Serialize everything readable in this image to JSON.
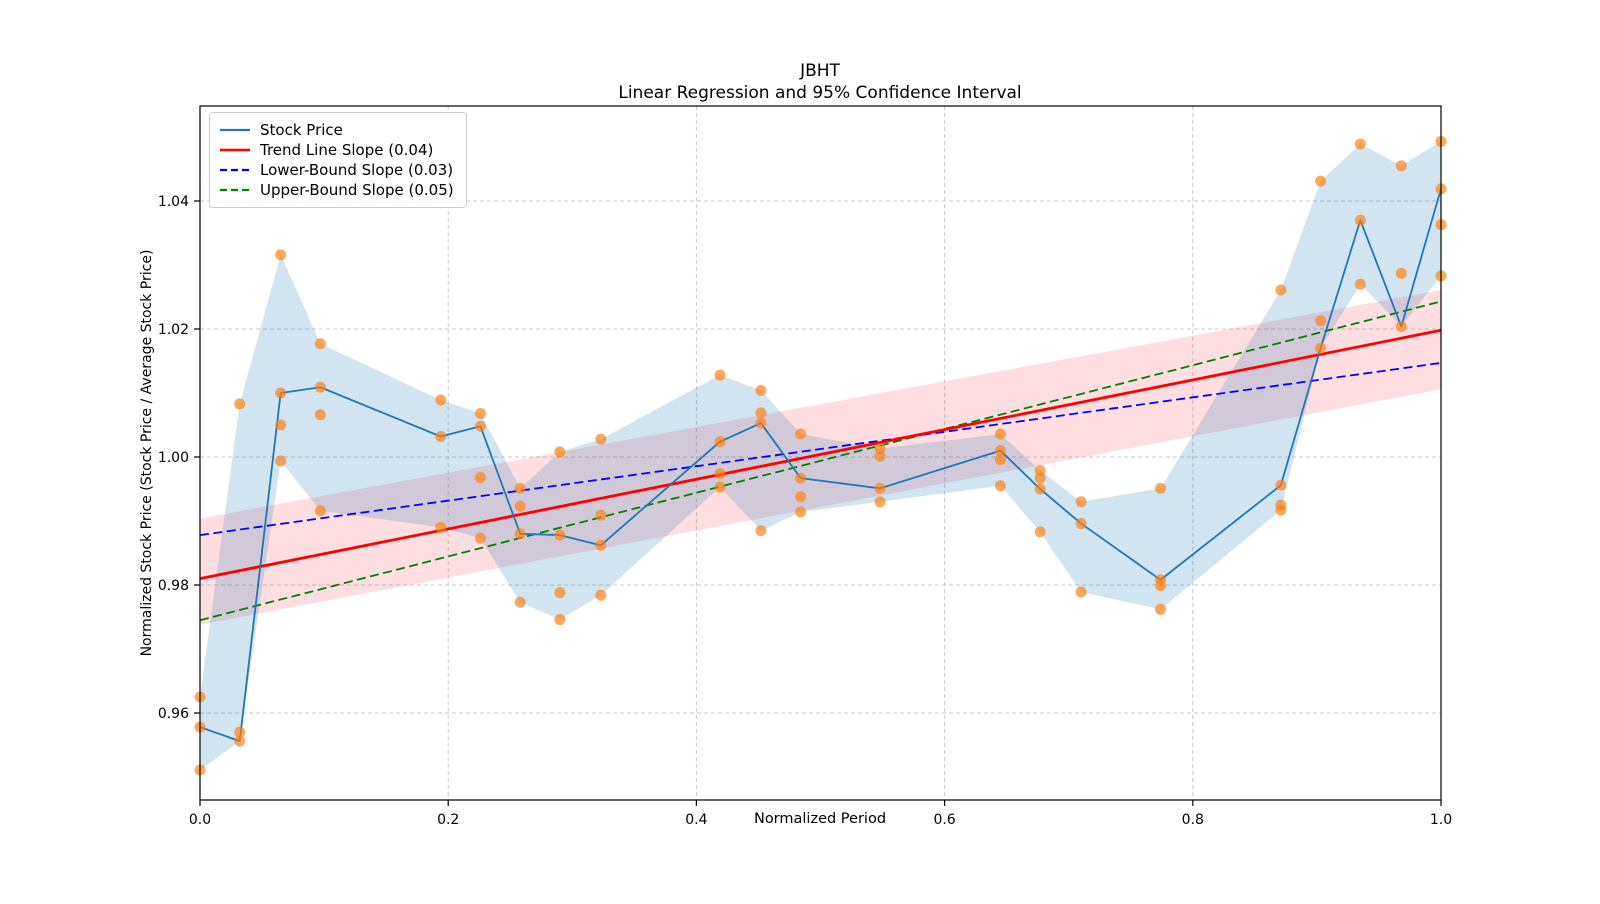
{
  "chart_data": {
    "type": "line",
    "title": "JBHT",
    "subtitle": "Linear Regression and 95% Confidence Interval",
    "xlabel": "Normalized Period",
    "ylabel": "Normalized Stock Price (Stock Price / Average Stock Price)",
    "xlim": [
      0.0,
      1.0
    ],
    "ylim": [
      0.9464,
      1.0548
    ],
    "grid": true,
    "legend_position": "upper-left",
    "x_ticks": {
      "values": [
        0.0,
        0.2,
        0.4,
        0.6,
        0.8,
        1.0
      ],
      "labels": [
        "0.0",
        "0.2",
        "0.4",
        "0.6",
        "0.8",
        "1.0"
      ]
    },
    "y_ticks": {
      "values": [
        0.96,
        0.98,
        1.0,
        1.02,
        1.04
      ],
      "labels": [
        "0.96",
        "0.98",
        "1.00",
        "1.02",
        "1.04"
      ]
    },
    "colors": {
      "stock_line": "#1f77b4",
      "scatter": "#ff7f0e",
      "price_band": "rgba(31,119,180,0.20)",
      "trend": "#ff0000",
      "lower_bound": "#0000ff",
      "upper_bound": "#008000",
      "ci_band": "rgba(255,20,40,0.14)",
      "grid": "#c9c9c9",
      "spine": "#000000"
    },
    "series": {
      "stock_price_line": {
        "label": "Stock Price",
        "x": [
          0.0,
          0.032,
          0.065,
          0.097,
          0.194,
          0.226,
          0.258,
          0.29,
          0.323,
          0.419,
          0.452,
          0.484,
          0.548,
          0.645,
          0.677,
          0.71,
          0.774,
          0.871,
          0.903,
          0.935,
          0.968,
          1.0
        ],
        "y": [
          0.9578,
          0.9556,
          1.01,
          1.0109,
          1.0032,
          1.0048,
          0.988,
          0.9878,
          0.9862,
          1.0024,
          1.0053,
          0.9967,
          0.9951,
          1.001,
          0.995,
          0.9896,
          0.9808,
          0.9956,
          1.017,
          1.037,
          1.0204,
          1.0419
        ]
      },
      "price_band": {
        "x": [
          0.0,
          0.032,
          0.065,
          0.097,
          0.194,
          0.226,
          0.258,
          0.29,
          0.323,
          0.419,
          0.452,
          0.484,
          0.548,
          0.645,
          0.677,
          0.71,
          0.774,
          0.871,
          0.903,
          0.935,
          0.968,
          1.0
        ],
        "upper": [
          0.9625,
          1.0083,
          1.0316,
          1.0177,
          1.0089,
          1.0068,
          0.9951,
          1.0008,
          1.0028,
          1.0128,
          1.0104,
          1.0036,
          1.0013,
          1.0036,
          0.9979,
          0.993,
          0.9951,
          1.0261,
          1.0431,
          1.0489,
          1.0455,
          1.0493
        ],
        "lower": [
          0.9511,
          0.9556,
          0.9994,
          0.9916,
          0.989,
          0.9873,
          0.9773,
          0.9746,
          0.9784,
          0.9953,
          0.9885,
          0.9914,
          0.993,
          0.9955,
          0.9883,
          0.9789,
          0.9762,
          0.9917,
          1.017,
          1.027,
          1.0204,
          1.0283
        ]
      },
      "scatter_points": {
        "points": [
          [
            0.0,
            0.9625
          ],
          [
            0.0,
            0.9578
          ],
          [
            0.0,
            0.9511
          ],
          [
            0.032,
            1.0083
          ],
          [
            0.032,
            0.957
          ],
          [
            0.032,
            0.9556
          ],
          [
            0.065,
            1.0316
          ],
          [
            0.065,
            1.01
          ],
          [
            0.065,
            1.005
          ],
          [
            0.065,
            0.9994
          ],
          [
            0.097,
            1.0177
          ],
          [
            0.097,
            1.0109
          ],
          [
            0.097,
            1.0066
          ],
          [
            0.097,
            0.9916
          ],
          [
            0.194,
            1.0089
          ],
          [
            0.194,
            1.0032
          ],
          [
            0.194,
            0.989
          ],
          [
            0.226,
            1.0068
          ],
          [
            0.226,
            1.0048
          ],
          [
            0.226,
            0.9968
          ],
          [
            0.226,
            0.9873
          ],
          [
            0.258,
            0.9951
          ],
          [
            0.258,
            0.9923
          ],
          [
            0.258,
            0.988
          ],
          [
            0.258,
            0.9773
          ],
          [
            0.29,
            1.0008
          ],
          [
            0.29,
            0.9878
          ],
          [
            0.29,
            0.9788
          ],
          [
            0.29,
            0.9746
          ],
          [
            0.323,
            1.0028
          ],
          [
            0.323,
            0.9909
          ],
          [
            0.323,
            0.9862
          ],
          [
            0.323,
            0.9784
          ],
          [
            0.419,
            1.0128
          ],
          [
            0.419,
            1.0024
          ],
          [
            0.419,
            0.9974
          ],
          [
            0.419,
            0.9953
          ],
          [
            0.452,
            1.0104
          ],
          [
            0.452,
            1.0069
          ],
          [
            0.452,
            1.0053
          ],
          [
            0.452,
            0.9885
          ],
          [
            0.484,
            1.0036
          ],
          [
            0.484,
            0.9967
          ],
          [
            0.484,
            0.9938
          ],
          [
            0.484,
            0.9914
          ],
          [
            0.548,
            1.0013
          ],
          [
            0.548,
            1.0001
          ],
          [
            0.548,
            0.9951
          ],
          [
            0.548,
            0.993
          ],
          [
            0.645,
            1.0036
          ],
          [
            0.645,
            1.001
          ],
          [
            0.645,
            0.9996
          ],
          [
            0.645,
            0.9955
          ],
          [
            0.677,
            0.9979
          ],
          [
            0.677,
            0.9967
          ],
          [
            0.677,
            0.995
          ],
          [
            0.677,
            0.9883
          ],
          [
            0.71,
            0.993
          ],
          [
            0.71,
            0.9896
          ],
          [
            0.71,
            0.9789
          ],
          [
            0.774,
            0.9951
          ],
          [
            0.774,
            0.9808
          ],
          [
            0.774,
            0.9799
          ],
          [
            0.774,
            0.9762
          ],
          [
            0.871,
            1.0261
          ],
          [
            0.871,
            0.9956
          ],
          [
            0.871,
            0.9925
          ],
          [
            0.871,
            0.9917
          ],
          [
            0.903,
            1.0431
          ],
          [
            0.903,
            1.0213
          ],
          [
            0.903,
            1.017
          ],
          [
            0.935,
            1.0489
          ],
          [
            0.935,
            1.037
          ],
          [
            0.935,
            1.027
          ],
          [
            0.968,
            1.0455
          ],
          [
            0.968,
            1.0287
          ],
          [
            0.968,
            1.0204
          ],
          [
            1.0,
            1.0493
          ],
          [
            1.0,
            1.0419
          ],
          [
            1.0,
            1.0363
          ],
          [
            1.0,
            1.0283
          ]
        ]
      },
      "trend_line": {
        "label": "Trend Line Slope (0.04)",
        "slope_label": "0.04",
        "endpoints": [
          [
            0.0,
            0.981
          ],
          [
            1.0,
            1.0198
          ]
        ]
      },
      "lower_bound": {
        "label": "Lower-Bound Slope (0.03)",
        "slope_label": "0.03",
        "endpoints": [
          [
            0.0,
            0.9878
          ],
          [
            1.0,
            1.0147
          ]
        ]
      },
      "upper_bound": {
        "label": "Upper-Bound Slope (0.05)",
        "slope_label": "0.05",
        "endpoints": [
          [
            0.0,
            0.9745
          ],
          [
            1.0,
            1.0243
          ]
        ]
      },
      "ci_band": {
        "upper": [
          [
            0.0,
            0.9904
          ],
          [
            1.0,
            1.0261
          ]
        ],
        "lower": [
          [
            0.0,
            0.9738
          ],
          [
            1.0,
            1.0106
          ]
        ]
      }
    }
  }
}
